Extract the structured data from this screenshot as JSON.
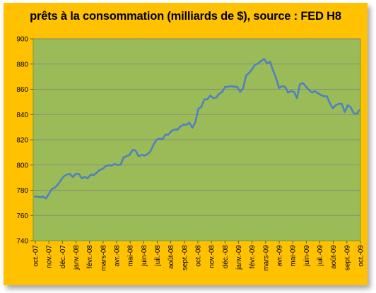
{
  "chart_data": {
    "type": "line",
    "title": "prêts à la consommation (milliards de $), source : FED H8",
    "xlabel": "",
    "ylabel": "",
    "ylim": [
      740,
      900
    ],
    "yticks": [
      740,
      760,
      780,
      800,
      820,
      840,
      860,
      880,
      900
    ],
    "grid": true,
    "x_tick_labels": [
      "oct.-07",
      "nov.-07",
      "déc.-07",
      "janv.-08",
      "févr.-08",
      "mars-08",
      "avr.-08",
      "mai-08",
      "juin-08",
      "juil.-08",
      "août-08",
      "sept.-08",
      "oct.-08",
      "nov.-08",
      "déc.-08",
      "janv.-09",
      "févr.-09",
      "mars-09",
      "avr.-09",
      "mai-09",
      "juin-09",
      "juil.-09",
      "août-09",
      "sept.-09",
      "oct.-09"
    ],
    "series": [
      {
        "values": [
          775,
          775,
          774.5,
          775,
          773.5,
          777,
          781,
          782,
          784.5,
          788,
          791,
          792.5,
          793,
          790.5,
          793,
          793,
          789.5,
          790.5,
          789.5,
          792.5,
          792,
          794,
          796,
          797,
          799,
          800,
          799.5,
          801,
          800,
          800.5,
          806,
          807,
          808,
          812,
          811.5,
          807,
          808,
          807.5,
          808.5,
          811,
          816,
          820,
          821,
          820.5,
          824,
          824,
          827,
          828,
          828,
          830.5,
          832,
          832,
          833.5,
          829.5,
          834,
          844.5,
          846,
          852,
          852,
          855,
          853,
          853.5,
          856.5,
          858,
          862,
          862,
          862.5,
          862,
          862,
          858,
          861,
          871,
          873,
          876,
          879.5,
          880.5,
          882.5,
          884,
          880.5,
          882,
          875,
          869,
          861,
          862.5,
          862,
          857.5,
          858.5,
          858,
          853,
          864,
          865,
          862,
          859.5,
          857.5,
          858.5,
          857,
          855.5,
          854.5,
          854.5,
          849,
          845,
          847.5,
          848.5,
          848.5,
          842,
          847.5,
          845.5,
          841,
          840.5,
          844
        ]
      }
    ],
    "colors": {
      "background": "#ffc100",
      "plot_area": "#9bbb59",
      "line": "#4f81bd",
      "grid": "#7f7f7f"
    }
  }
}
